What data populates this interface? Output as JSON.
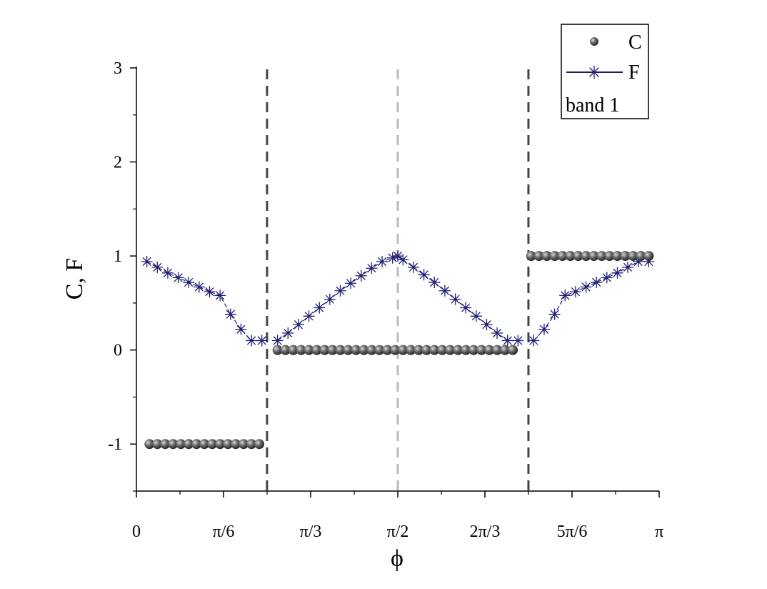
{
  "chart_data": {
    "type": "scatter",
    "title": "",
    "xlabel": "ϕ",
    "ylabel": "C, F",
    "xlim": [
      0,
      3.14159
    ],
    "ylim": [
      -1.5,
      3
    ],
    "x_ticks": [
      {
        "value": 0,
        "label": "0"
      },
      {
        "value": 0.5236,
        "label": "π/6"
      },
      {
        "value": 1.0472,
        "label": "π/3"
      },
      {
        "value": 1.5708,
        "label": "π/2"
      },
      {
        "value": 2.0944,
        "label": "2π/3"
      },
      {
        "value": 2.618,
        "label": "5π/6"
      },
      {
        "value": 3.1416,
        "label": "π"
      }
    ],
    "y_ticks": [
      {
        "value": -1,
        "label": "-1"
      },
      {
        "value": 0,
        "label": "0"
      },
      {
        "value": 1,
        "label": "1"
      },
      {
        "value": 2,
        "label": "2"
      },
      {
        "value": 3,
        "label": "3"
      }
    ],
    "grid": false,
    "legend": {
      "position": "top-right",
      "entries": [
        "C",
        "F"
      ],
      "note": "band 1"
    },
    "vlines": [
      {
        "x": 0.785,
        "style": "dashed",
        "color": "#444444"
      },
      {
        "x": 1.5708,
        "style": "dashed",
        "color": "#bbbbbb"
      },
      {
        "x": 2.356,
        "style": "dashed",
        "color": "#444444"
      }
    ],
    "series": [
      {
        "name": "C",
        "marker": "sphere",
        "color": "#4a4a4a",
        "x": [
          0.0785,
          0.1257,
          0.1728,
          0.22,
          0.2671,
          0.3142,
          0.3613,
          0.4084,
          0.4555,
          0.5027,
          0.5498,
          0.5969,
          0.644,
          0.6912,
          0.7383,
          0.8482,
          0.8953,
          0.9425,
          0.9896,
          1.0367,
          1.0838,
          1.131,
          1.1781,
          1.2252,
          1.2723,
          1.3195,
          1.3666,
          1.4137,
          1.4608,
          1.508,
          1.5551,
          1.6022,
          1.6493,
          1.6965,
          1.7436,
          1.7907,
          1.8378,
          1.885,
          1.9321,
          1.9792,
          2.0263,
          2.0735,
          2.1206,
          2.1677,
          2.2148,
          2.262,
          2.3719,
          2.419,
          2.4661,
          2.5133,
          2.5604,
          2.6075,
          2.6546,
          2.7018,
          2.7489,
          2.796,
          2.8431,
          2.8903,
          2.9374,
          2.9845,
          3.0316,
          3.0788
        ],
        "y": [
          -1,
          -1,
          -1,
          -1,
          -1,
          -1,
          -1,
          -1,
          -1,
          -1,
          -1,
          -1,
          -1,
          -1,
          -1,
          0,
          0,
          0,
          0,
          0,
          0,
          0,
          0,
          0,
          0,
          0,
          0,
          0,
          0,
          0,
          0,
          0,
          0,
          0,
          0,
          0,
          0,
          0,
          0,
          0,
          0,
          0,
          0,
          0,
          0,
          0,
          1,
          1,
          1,
          1,
          1,
          1,
          1,
          1,
          1,
          1,
          1,
          1,
          1,
          1,
          1,
          1
        ]
      },
      {
        "name": "F",
        "marker": "asterisk-line",
        "color": "#1c1c7a",
        "segments": [
          {
            "x": [
              0.0628,
              0.1257,
              0.1885,
              0.2513,
              0.3142,
              0.377,
              0.4398,
              0.5027,
              0.5655,
              0.6283,
              0.6912,
              0.754
            ],
            "y": [
              0.94,
              0.88,
              0.82,
              0.77,
              0.72,
              0.67,
              0.62,
              0.58,
              0.38,
              0.22,
              0.1,
              0.1
            ]
          },
          {
            "x": [
              0.8482,
              0.911,
              0.9739,
              1.0367,
              1.0996,
              1.1624,
              1.2252,
              1.2881,
              1.3509,
              1.4137,
              1.4766,
              1.5394,
              1.5708,
              1.6022,
              1.665,
              1.7279,
              1.7907,
              1.8535,
              1.9164,
              1.9792,
              2.042,
              2.1049,
              2.1677,
              2.2305,
              2.2934
            ],
            "y": [
              0.1,
              0.18,
              0.27,
              0.36,
              0.45,
              0.54,
              0.63,
              0.71,
              0.79,
              0.87,
              0.94,
              0.98,
              1.0,
              0.96,
              0.88,
              0.8,
              0.72,
              0.63,
              0.54,
              0.45,
              0.36,
              0.27,
              0.18,
              0.1,
              0.1
            ]
          },
          {
            "x": [
              2.3876,
              2.4504,
              2.5133,
              2.5761,
              2.6389,
              2.7018,
              2.7646,
              2.8274,
              2.8903,
              2.9531,
              3.0159,
              3.0788
            ],
            "y": [
              0.1,
              0.22,
              0.38,
              0.58,
              0.62,
              0.67,
              0.72,
              0.77,
              0.82,
              0.88,
              0.94,
              0.94
            ]
          }
        ]
      }
    ]
  }
}
